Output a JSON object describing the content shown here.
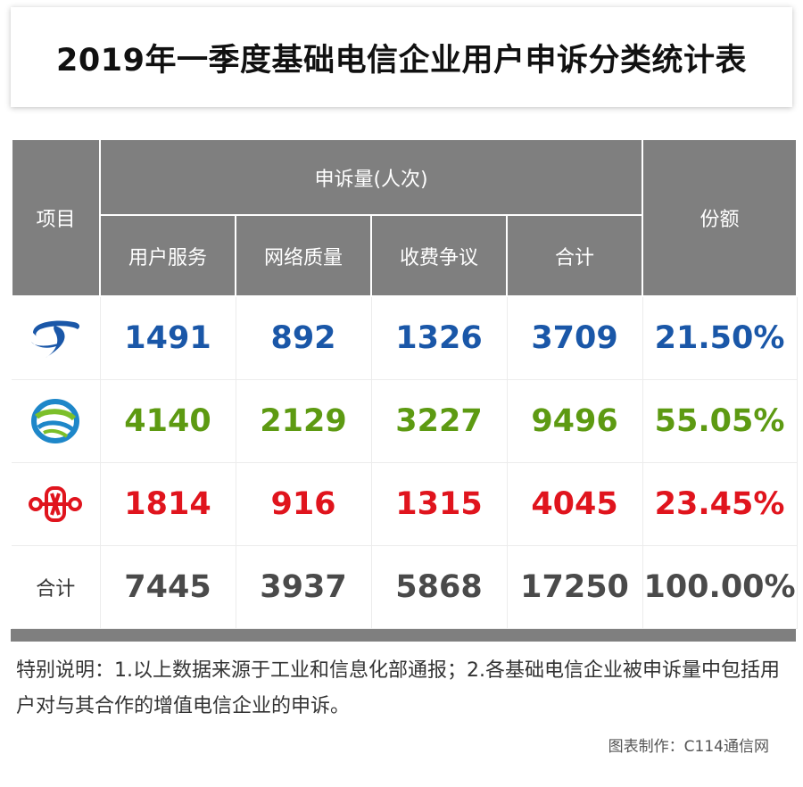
{
  "title": "2019年一季度基础电信企业用户申诉分类统计表",
  "colors": {
    "telecom": "#1a57a8",
    "mobile": "#5d9a12",
    "unicom": "#e0141d",
    "total": "#4a4a4a",
    "header_bg": "#7f7f7f"
  },
  "headers": {
    "item": "项目",
    "complaints": "申诉量(人次)",
    "share": "份额",
    "sub": [
      "用户服务",
      "网络质量",
      "收费争议",
      "合计"
    ]
  },
  "rows": [
    {
      "logo": "china-telecom-logo",
      "values": [
        "1491",
        "892",
        "1326",
        "3709"
      ],
      "share": "21.50%"
    },
    {
      "logo": "china-mobile-logo",
      "values": [
        "4140",
        "2129",
        "3227",
        "9496"
      ],
      "share": "55.05%"
    },
    {
      "logo": "china-unicom-logo",
      "values": [
        "1814",
        "916",
        "1315",
        "4045"
      ],
      "share": "23.45%"
    }
  ],
  "total_row": {
    "label": "合计",
    "values": [
      "7445",
      "3937",
      "5868",
      "17250"
    ],
    "share": "100.00%"
  },
  "note": "特别说明：1.以上数据来源于工业和信息化部通报；2.各基础电信企业被申诉量中包括用户对与其合作的增值电信企业的申诉。",
  "credit": "图表制作：C114通信网"
}
